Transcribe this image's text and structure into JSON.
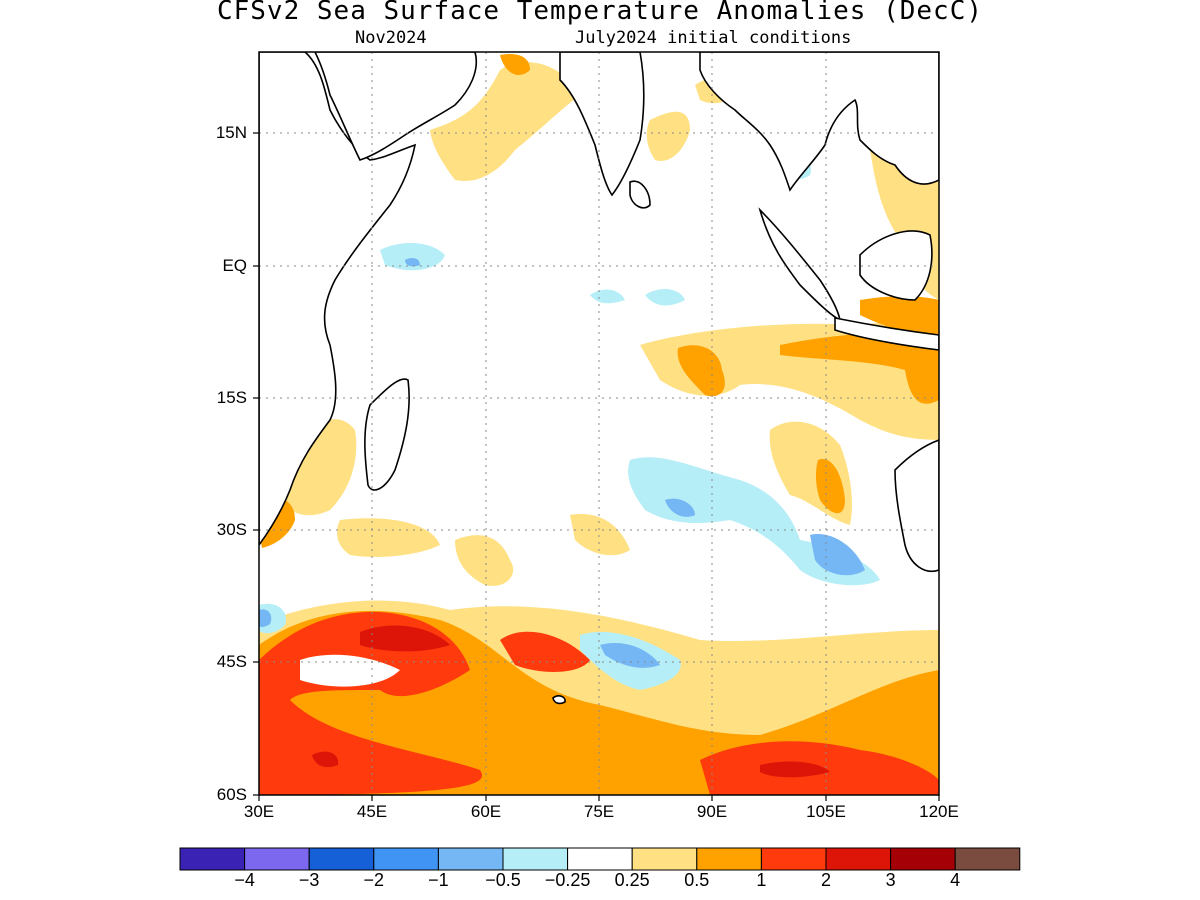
{
  "header": {
    "title": "CFSv2 Sea Surface Temperature Anomalies (DecC)",
    "valid_month": "Nov2024",
    "init": "July2024 initial conditions"
  },
  "map": {
    "region": "Indian Ocean",
    "lon_range": [
      30,
      120
    ],
    "lat_range": [
      -60,
      24
    ],
    "lat_ticks": [
      "15N",
      "EQ",
      "15S",
      "30S",
      "45S",
      "60S"
    ],
    "lon_ticks": [
      "30E",
      "45E",
      "60E",
      "75E",
      "90E",
      "105E",
      "120E"
    ],
    "grid": "dotted"
  },
  "colorbar": {
    "colors": [
      "#3a22b4",
      "#7b68ee",
      "#1560d6",
      "#3f94f4",
      "#75b6f5",
      "#b5eef7",
      "#ffffff",
      "#ffe184",
      "#ffa200",
      "#ff3a0c",
      "#dd1508",
      "#a50005",
      "#7a4b3f"
    ],
    "labels": [
      "−4",
      "−3",
      "−2",
      "−1",
      "−0.5",
      "−0.25",
      "0.25",
      "0.5",
      "1",
      "2",
      "3",
      "4"
    ]
  }
}
